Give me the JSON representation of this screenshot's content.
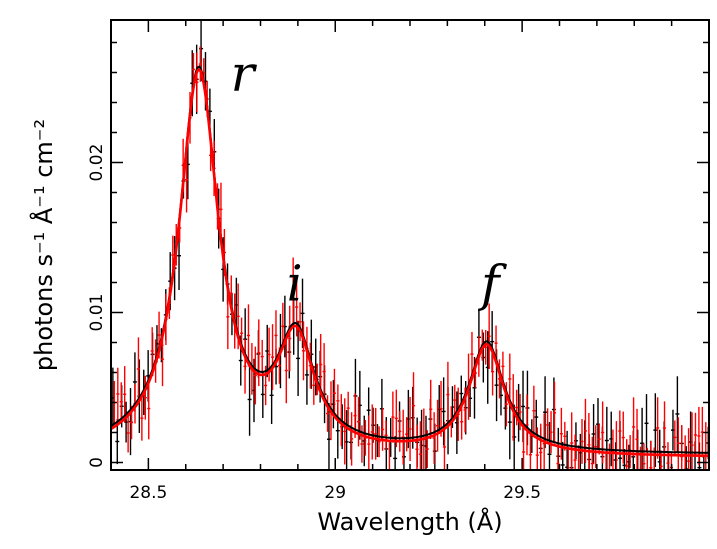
{
  "chart_data": {
    "type": "scatter",
    "title": "",
    "xlabel": "Wavelength (Å)",
    "ylabel": "photons s⁻¹ Å⁻¹ cm⁻²",
    "xlim": [
      28.4,
      30.0
    ],
    "ylim": [
      -0.0005,
      0.0295
    ],
    "xticks": [
      {
        "value": 28.5,
        "label": "28.5"
      },
      {
        "value": 29.0,
        "label": "29"
      },
      {
        "value": 29.5,
        "label": "29.5"
      }
    ],
    "yticks": [
      {
        "value": 0.0,
        "label": "0"
      },
      {
        "value": 0.01,
        "label": "0.01"
      },
      {
        "value": 0.02,
        "label": "0.02"
      }
    ],
    "grid": false,
    "model": {
      "baseline": 0.0005,
      "lines": [
        {
          "name": "r",
          "center": 28.635,
          "amplitude": 0.0255,
          "width": 0.065
        },
        {
          "name": "i",
          "center": 28.895,
          "amplitude": 0.0072,
          "width": 0.06
        },
        {
          "name": "f",
          "center": 29.405,
          "amplitude": 0.0073,
          "width": 0.058
        }
      ]
    },
    "series": [
      {
        "name": "data-black",
        "color": "#000000",
        "start": 28.405,
        "step": 0.0118,
        "error": 0.0018,
        "seed": 11
      },
      {
        "name": "data-red",
        "color": "#ff0000",
        "start": 28.409,
        "step": 0.0092,
        "error": 0.0016,
        "seed": 29
      },
      {
        "name": "model-black",
        "color": "#000000"
      },
      {
        "name": "model-red",
        "color": "#ff0000"
      }
    ],
    "annotations": [
      {
        "text": "r",
        "x": 28.72,
        "y": 0.0248
      },
      {
        "text": "i",
        "x": 28.87,
        "y": 0.0108
      },
      {
        "text": "f",
        "x": 29.39,
        "y": 0.0108
      }
    ]
  }
}
